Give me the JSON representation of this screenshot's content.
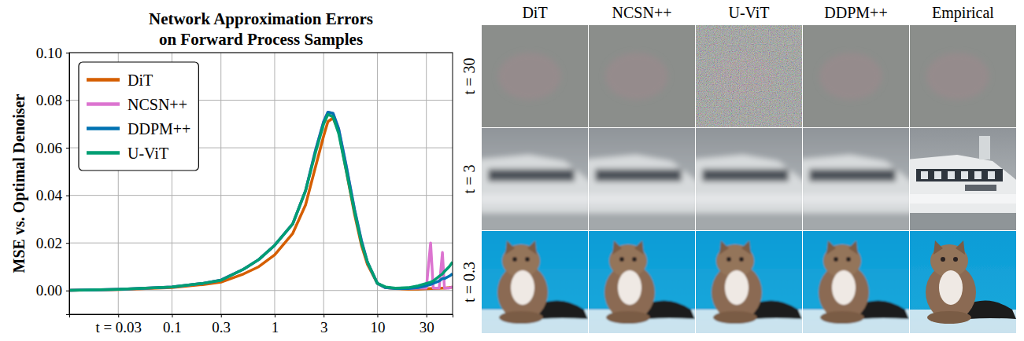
{
  "chart_data": {
    "type": "line",
    "title": "Network Approximation Errors on Forward Process Samples",
    "y_label": "MSE vs. Optimal Denoiser",
    "log": "x",
    "grid": true,
    "legend": "upper left",
    "xlim": [
      0.01,
      54
    ],
    "ylim": [
      -0.01,
      0.1
    ],
    "xticks": [
      {
        "value": 0.03,
        "label": "t = 0.03"
      },
      0.1,
      0.3,
      1,
      3,
      10,
      30
    ],
    "yticks": [
      {
        "value": 0,
        "label": "0.00"
      },
      {
        "value": 0.02,
        "label": "0.02"
      },
      {
        "value": 0.04,
        "label": "0.04"
      },
      {
        "value": 0.06,
        "label": "0.06"
      },
      {
        "value": 0.08,
        "label": "0.08"
      },
      {
        "value": 0.1,
        "label": "0.10"
      }
    ],
    "x": [
      0.01,
      0.02,
      0.03,
      0.05,
      0.1,
      0.2,
      0.3,
      0.5,
      0.7,
      1,
      1.5,
      2,
      2.5,
      3,
      3.3,
      3.7,
      4.2,
      5,
      6,
      7,
      8,
      10,
      12,
      15,
      20,
      25,
      30,
      33,
      35,
      40,
      43,
      45,
      50,
      54
    ],
    "series": [
      {
        "name": "DiT",
        "color": "#d55e00",
        "values": [
          0.0001,
          0.0002,
          0.0004,
          0.0007,
          0.0012,
          0.0025,
          0.0035,
          0.007,
          0.01,
          0.015,
          0.024,
          0.036,
          0.052,
          0.065,
          0.071,
          0.0725,
          0.067,
          0.05,
          0.032,
          0.019,
          0.011,
          0.003,
          0.0012,
          0.0008,
          0.0006,
          0.0006,
          0.0007,
          0.0008,
          0.0008,
          0.0009,
          0.001,
          0.001,
          0.0012,
          0.0014
        ]
      },
      {
        "name": "NCSN++",
        "color": "#dc74d0",
        "values": [
          0.0001,
          0.0003,
          0.0005,
          0.0009,
          0.0015,
          0.003,
          0.0044,
          0.009,
          0.013,
          0.019,
          0.028,
          0.042,
          0.059,
          0.071,
          0.075,
          0.0745,
          0.068,
          0.052,
          0.034,
          0.021,
          0.012,
          0.003,
          0.0012,
          0.0008,
          0.0008,
          0.001,
          0.001,
          0.02,
          0.001,
          0.001,
          0.016,
          0.001,
          0.001,
          0.0015
        ]
      },
      {
        "name": "DDPM++",
        "color": "#0072b2",
        "values": [
          0.0001,
          0.0003,
          0.0005,
          0.0009,
          0.0015,
          0.003,
          0.0044,
          0.009,
          0.013,
          0.019,
          0.028,
          0.042,
          0.059,
          0.071,
          0.075,
          0.0745,
          0.068,
          0.052,
          0.034,
          0.021,
          0.012,
          0.003,
          0.0012,
          0.0008,
          0.0008,
          0.0012,
          0.002,
          0.0025,
          0.003,
          0.004,
          0.005,
          0.005,
          0.006,
          0.007
        ]
      },
      {
        "name": "U-ViT",
        "color": "#009e73",
        "values": [
          0.0001,
          0.0003,
          0.0005,
          0.0009,
          0.0015,
          0.003,
          0.0043,
          0.009,
          0.013,
          0.019,
          0.028,
          0.042,
          0.058,
          0.07,
          0.074,
          0.073,
          0.066,
          0.05,
          0.033,
          0.02,
          0.012,
          0.003,
          0.0015,
          0.001,
          0.0012,
          0.002,
          0.003,
          0.0035,
          0.004,
          0.006,
          0.007,
          0.008,
          0.01,
          0.012
        ]
      }
    ]
  },
  "image_grid": {
    "columns": [
      "DiT",
      "NCSN++",
      "U-ViT",
      "DDPM++",
      "Empirical"
    ],
    "rows": [
      "t = 30",
      "t = 3",
      "t = 0.3"
    ]
  }
}
